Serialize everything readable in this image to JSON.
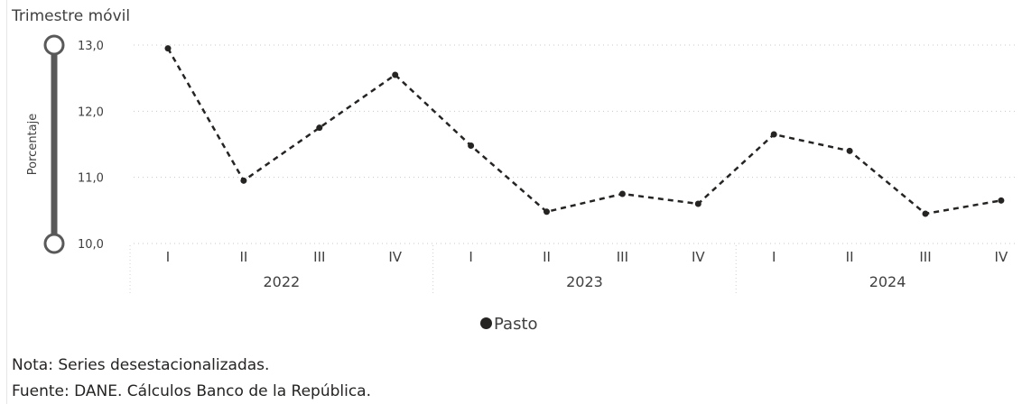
{
  "chart_data": {
    "type": "line",
    "title": "Trimestre móvil",
    "ylabel": "Porcentaje",
    "ylim": [
      10.0,
      13.0
    ],
    "yticks": [
      "13,0",
      "12,0",
      "11,0",
      "10,0"
    ],
    "ytick_values": [
      13,
      12,
      11,
      10
    ],
    "categories": [
      "I",
      "II",
      "III",
      "IV",
      "I",
      "II",
      "III",
      "IV",
      "I",
      "II",
      "III",
      "IV"
    ],
    "year_groups": [
      {
        "label": "2022"
      },
      {
        "label": "2023"
      },
      {
        "label": "2024"
      }
    ],
    "series": [
      {
        "name": "Pasto",
        "values": [
          12.95,
          10.95,
          11.75,
          12.55,
          11.48,
          10.48,
          10.75,
          10.6,
          11.65,
          11.4,
          10.45,
          10.65
        ]
      }
    ],
    "grid": true,
    "legend_position": "bottom-center",
    "line_style": "dashed",
    "colors": {
      "series": "#252423",
      "grid": "#c8c8c8",
      "slider": "#595959"
    }
  },
  "notes": [
    "Nota: Series desestacionalizadas.",
    "Fuente: DANE. Cálculos Banco de la República."
  ]
}
